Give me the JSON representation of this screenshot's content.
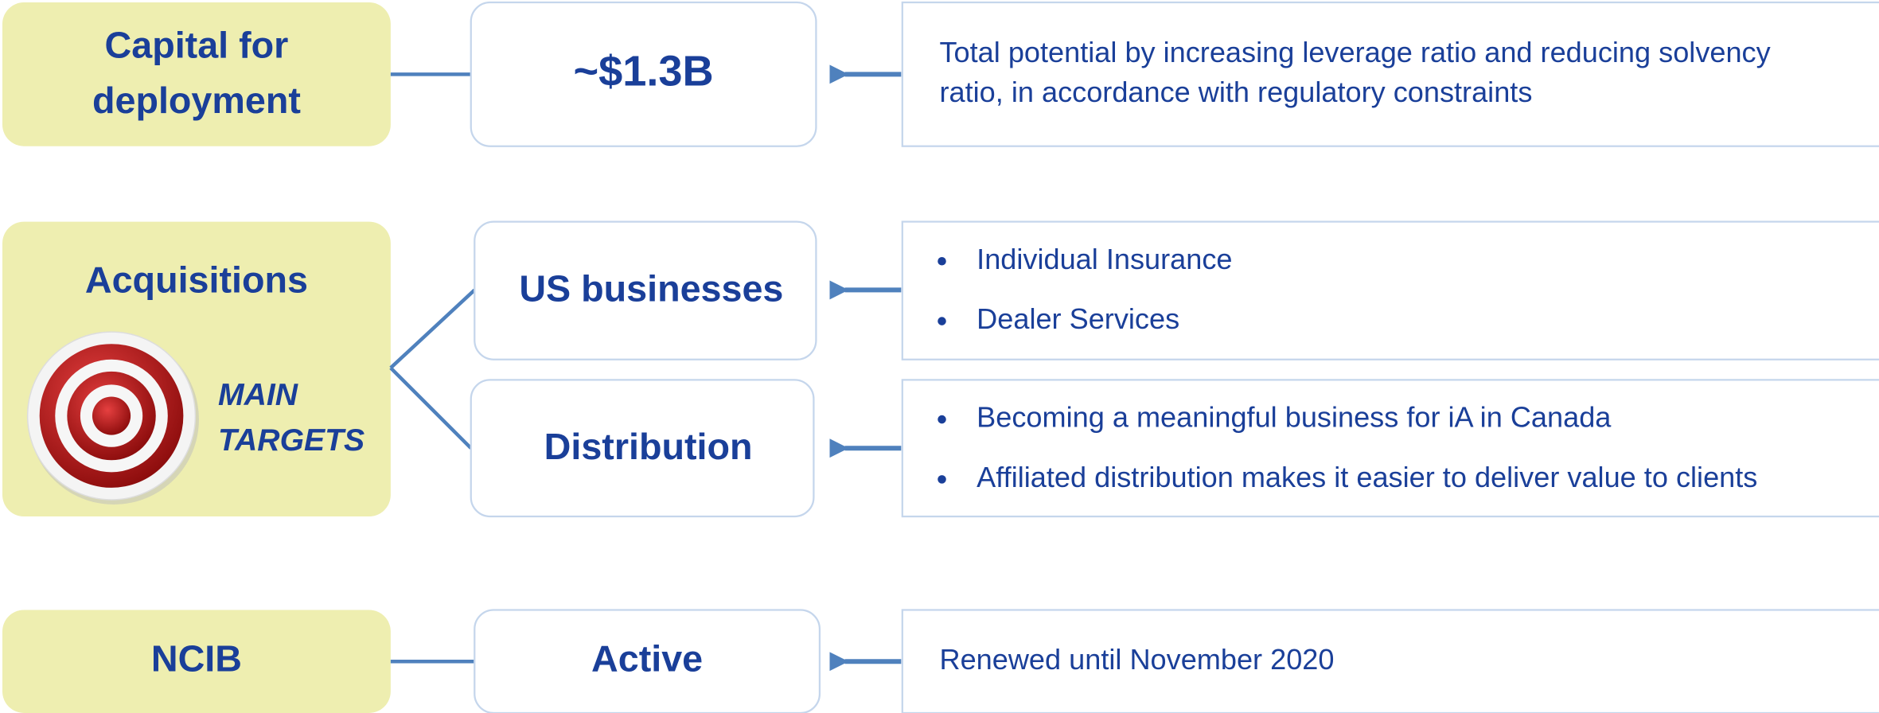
{
  "rows": [
    {
      "label": [
        "Capital for",
        "deployment"
      ],
      "items": [
        {
          "value": "~$1.3B",
          "description": [
            "Total potential by increasing leverage ratio and reducing solvency",
            "ratio, in accordance with regulatory constraints"
          ]
        }
      ]
    },
    {
      "label": [
        "Acquisitions"
      ],
      "targets": [
        "MAIN",
        "TARGETS"
      ],
      "items": [
        {
          "value": "US businesses",
          "bullets": [
            "Individual Insurance",
            "Dealer Services"
          ]
        },
        {
          "value": "Distribution",
          "bullets": [
            "Becoming a meaningful business for iA in Canada",
            "Affiliated distribution makes it easier to deliver value to clients"
          ]
        }
      ]
    },
    {
      "label": [
        "NCIB"
      ],
      "items": [
        {
          "value": "Active",
          "description": [
            "Renewed until November 2020"
          ]
        }
      ]
    }
  ]
}
